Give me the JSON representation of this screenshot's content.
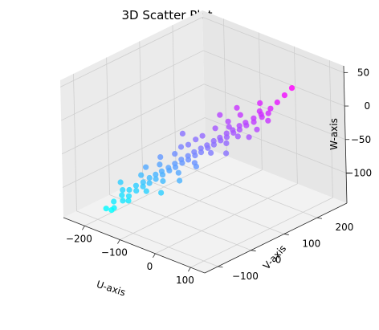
{
  "chart_data": {
    "type": "scatter",
    "title": "3D Scatter Plot",
    "xlabel": "U-axis",
    "ylabel": "V-axis",
    "zlabel": "W-axis",
    "xlim": [
      -260,
      140
    ],
    "ylim": [
      -140,
      290
    ],
    "zlim": [
      -145,
      60
    ],
    "x_ticks": [
      -200,
      -100,
      0,
      100
    ],
    "y_ticks": [
      -100,
      0,
      100,
      200
    ],
    "z_ticks": [
      -100,
      -50,
      0,
      50
    ],
    "x_tick_labels": [
      "−200",
      "−100",
      "0",
      "100"
    ],
    "y_tick_labels": [
      "−100",
      "0",
      "100",
      "200"
    ],
    "z_tick_labels": [
      "−100",
      "−50",
      "0",
      "50"
    ],
    "colormap": "cool",
    "color_by": "v",
    "grid": true,
    "points": [
      {
        "u": -187,
        "v": -88,
        "w": -129
      },
      {
        "u": -180,
        "v": -72,
        "w": -121
      },
      {
        "u": -172,
        "v": -80,
        "w": -127
      },
      {
        "u": -168,
        "v": -60,
        "w": -112
      },
      {
        "u": -160,
        "v": -66,
        "w": -117
      },
      {
        "u": -156,
        "v": -50,
        "w": -104
      },
      {
        "u": -150,
        "v": -58,
        "w": -110
      },
      {
        "u": -146,
        "v": -40,
        "w": -98
      },
      {
        "u": -140,
        "v": -46,
        "w": -103
      },
      {
        "u": -135,
        "v": -30,
        "w": -93
      },
      {
        "u": -130,
        "v": -36,
        "w": -97
      },
      {
        "u": -126,
        "v": -20,
        "w": -87
      },
      {
        "u": -120,
        "v": -27,
        "w": -92
      },
      {
        "u": -116,
        "v": -12,
        "w": -82
      },
      {
        "u": -110,
        "v": -18,
        "w": -86
      },
      {
        "u": -106,
        "v": -4,
        "w": -77
      },
      {
        "u": -100,
        "v": -8,
        "w": -80
      },
      {
        "u": -96,
        "v": 6,
        "w": -72
      },
      {
        "u": -90,
        "v": 2,
        "w": -74
      },
      {
        "u": -86,
        "v": 15,
        "w": -66
      },
      {
        "u": -80,
        "v": 10,
        "w": -69
      },
      {
        "u": -76,
        "v": 24,
        "w": -60
      },
      {
        "u": -70,
        "v": 20,
        "w": -63
      },
      {
        "u": -66,
        "v": 34,
        "w": -55
      },
      {
        "u": -60,
        "v": 28,
        "w": -58
      },
      {
        "u": -56,
        "v": 42,
        "w": -49
      },
      {
        "u": -50,
        "v": 38,
        "w": -52
      },
      {
        "u": -46,
        "v": 52,
        "w": -44
      },
      {
        "u": -40,
        "v": 46,
        "w": -47
      },
      {
        "u": -36,
        "v": 60,
        "w": -39
      },
      {
        "u": -30,
        "v": 56,
        "w": -41
      },
      {
        "u": -26,
        "v": 70,
        "w": -33
      },
      {
        "u": -20,
        "v": 64,
        "w": -36
      },
      {
        "u": -16,
        "v": 78,
        "w": -28
      },
      {
        "u": -10,
        "v": 74,
        "w": -30
      },
      {
        "u": -6,
        "v": 88,
        "w": -22
      },
      {
        "u": 0,
        "v": 82,
        "w": -25
      },
      {
        "u": 4,
        "v": 96,
        "w": -17
      },
      {
        "u": 10,
        "v": 92,
        "w": -19
      },
      {
        "u": 14,
        "v": 106,
        "w": -11
      },
      {
        "u": 20,
        "v": 100,
        "w": -14
      },
      {
        "u": 24,
        "v": 114,
        "w": -6
      },
      {
        "u": 30,
        "v": 110,
        "w": -8
      },
      {
        "u": 36,
        "v": 126,
        "w": 0
      },
      {
        "u": 42,
        "v": 120,
        "w": -3
      },
      {
        "u": 48,
        "v": 136,
        "w": 6
      },
      {
        "u": 54,
        "v": 132,
        "w": 4
      },
      {
        "u": 62,
        "v": 150,
        "w": 14
      },
      {
        "u": 70,
        "v": 162,
        "w": 22
      },
      {
        "u": 78,
        "v": 176,
        "w": 31
      },
      {
        "u": 86,
        "v": 190,
        "w": 40
      },
      {
        "u": -175,
        "v": -50,
        "w": -108
      },
      {
        "u": -150,
        "v": -20,
        "w": -88
      },
      {
        "u": -120,
        "v": 5,
        "w": -72
      },
      {
        "u": -100,
        "v": 30,
        "w": -58
      },
      {
        "u": -80,
        "v": 50,
        "w": -45
      },
      {
        "u": -60,
        "v": 72,
        "w": -33
      },
      {
        "u": -40,
        "v": 90,
        "w": -22
      },
      {
        "u": -20,
        "v": 108,
        "w": -12
      },
      {
        "u": 0,
        "v": 124,
        "w": -2
      },
      {
        "u": -165,
        "v": -95,
        "w": -125
      },
      {
        "u": -140,
        "v": -70,
        "w": -112
      },
      {
        "u": -112,
        "v": -45,
        "w": -98
      },
      {
        "u": -88,
        "v": -20,
        "w": -84
      },
      {
        "u": -64,
        "v": 2,
        "w": -72
      },
      {
        "u": -40,
        "v": 26,
        "w": -58
      },
      {
        "u": -16,
        "v": 50,
        "w": -44
      },
      {
        "u": 8,
        "v": 72,
        "w": -30
      },
      {
        "u": 26,
        "v": 88,
        "w": -20
      },
      {
        "u": -130,
        "v": 18,
        "w": -66
      },
      {
        "u": -70,
        "v": 62,
        "w": -38
      },
      {
        "u": -10,
        "v": 100,
        "w": -16
      },
      {
        "u": 40,
        "v": 140,
        "w": 8
      },
      {
        "u": -190,
        "v": -40,
        "w": -102
      },
      {
        "u": -155,
        "v": 0,
        "w": -82
      },
      {
        "u": -95,
        "v": 44,
        "w": -50
      },
      {
        "u": 18,
        "v": 60,
        "w": -40
      },
      {
        "u": 50,
        "v": 96,
        "w": -18
      },
      {
        "u": 60,
        "v": 110,
        "w": -8
      },
      {
        "u": -30,
        "v": 20,
        "w": -60
      },
      {
        "u": -50,
        "v": -10,
        "w": -78
      },
      {
        "u": -75,
        "v": -40,
        "w": -94
      },
      {
        "u": 32,
        "v": 150,
        "w": 16
      },
      {
        "u": -15,
        "v": 130,
        "w": 4
      },
      {
        "u": -45,
        "v": 110,
        "w": -8
      },
      {
        "u": -105,
        "v": 60,
        "w": -36
      },
      {
        "u": 65,
        "v": 140,
        "w": 10
      },
      {
        "u": 75,
        "v": 128,
        "w": 4
      }
    ]
  }
}
